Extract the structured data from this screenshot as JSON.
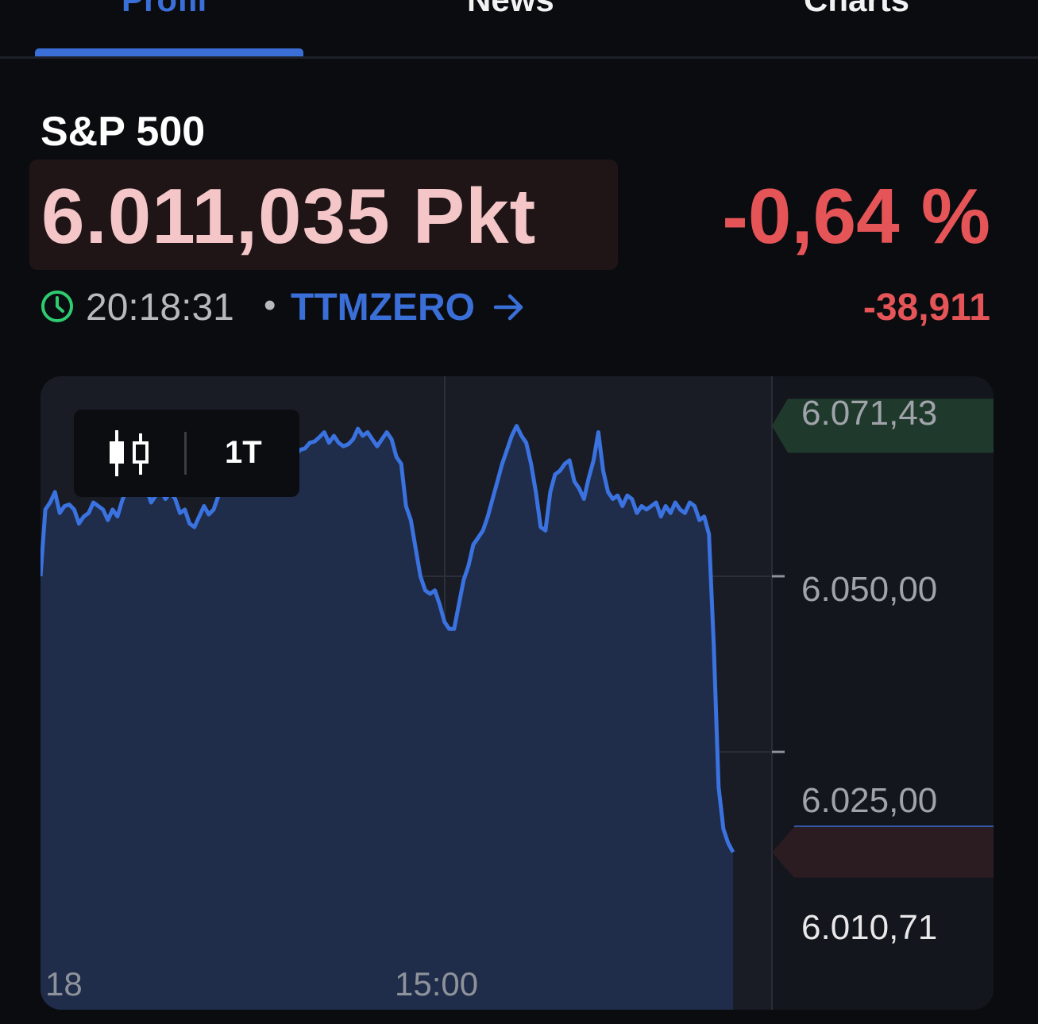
{
  "tabs": [
    {
      "label": "Profil",
      "active": true
    },
    {
      "label": "News",
      "active": false
    },
    {
      "label": "Charts",
      "active": false
    }
  ],
  "instrument": {
    "name": "S&P 500",
    "price": "6.011,035 Pkt",
    "change_pct": "-0,64 %",
    "change_abs": "-38,911",
    "time": "20:18:31",
    "separator": "•",
    "source": "TTMZERO",
    "colors": {
      "negative": "#e55558",
      "accent": "#3a6fd8",
      "clock": "#2ecc71"
    }
  },
  "toolbar": {
    "interval": "1T",
    "chart_type_icon": "candlestick-icon"
  },
  "chart_data": {
    "type": "area",
    "ylim": [
      6000.5,
      6073.5
    ],
    "y_ticks": [
      {
        "value": 6050,
        "label": "6.050,00"
      },
      {
        "value": 6025,
        "label": "6.025,00"
      }
    ],
    "high_label": {
      "value": 6071.43,
      "label": "6.071,43"
    },
    "last_label": {
      "value": 6010.71,
      "label": "6.010,71"
    },
    "x_ticks": [
      {
        "x": 0,
        "label": "18"
      },
      {
        "x": 0.424,
        "label": "15:00"
      }
    ],
    "y": [
      6050,
      6059.5,
      6060.5,
      6062,
      6059,
      6060,
      6060.2,
      6059.5,
      6057.5,
      6058.5,
      6059,
      6060.5,
      6060,
      6059.5,
      6058,
      6059.5,
      6058.5,
      6060.8,
      6062.5,
      6065,
      6067,
      6064.5,
      6062.5,
      6060.5,
      6061.5,
      6062.2,
      6061,
      6062,
      6061,
      6059,
      6059.5,
      6057.5,
      6057,
      6058.5,
      6060,
      6058.8,
      6059.5,
      6061.5,
      6064,
      6067,
      6068,
      6069,
      6067.5,
      6066.8,
      6068.5,
      6067,
      6068,
      6067.5,
      6068.5,
      6068.5,
      6067.5,
      6068,
      6067.5,
      6067.2,
      6068,
      6068.2,
      6069,
      6069.2,
      6069.8,
      6070.5,
      6069,
      6070,
      6069,
      6068.5,
      6068.8,
      6069.5,
      6071,
      6070,
      6070.5,
      6069.5,
      6068.5,
      6069.5,
      6070.5,
      6069.5,
      6067,
      6066,
      6060,
      6058,
      6054,
      6050,
      6048,
      6047.5,
      6048,
      6046,
      6043.5,
      6042.5,
      6042.5,
      6046,
      6049.5,
      6051.5,
      6054.5,
      6055.5,
      6056.5,
      6058.5,
      6061,
      6063.5,
      6066,
      6068,
      6070,
      6071.4,
      6070,
      6069,
      6066,
      6062,
      6057,
      6056.5,
      6062,
      6064.5,
      6065,
      6066,
      6066.5,
      6063.5,
      6062.5,
      6061,
      6064,
      6066.5,
      6070.5,
      6065,
      6062,
      6061,
      6061.5,
      6060,
      6061.5,
      6061,
      6059,
      6060,
      6059.5,
      6060,
      6060.5,
      6058.5,
      6060,
      6059,
      6060.5,
      6059.5,
      6059,
      6060.5,
      6060,
      6058,
      6058.5,
      6056,
      6040,
      6020,
      6014,
      6012,
      6010.71
    ]
  }
}
